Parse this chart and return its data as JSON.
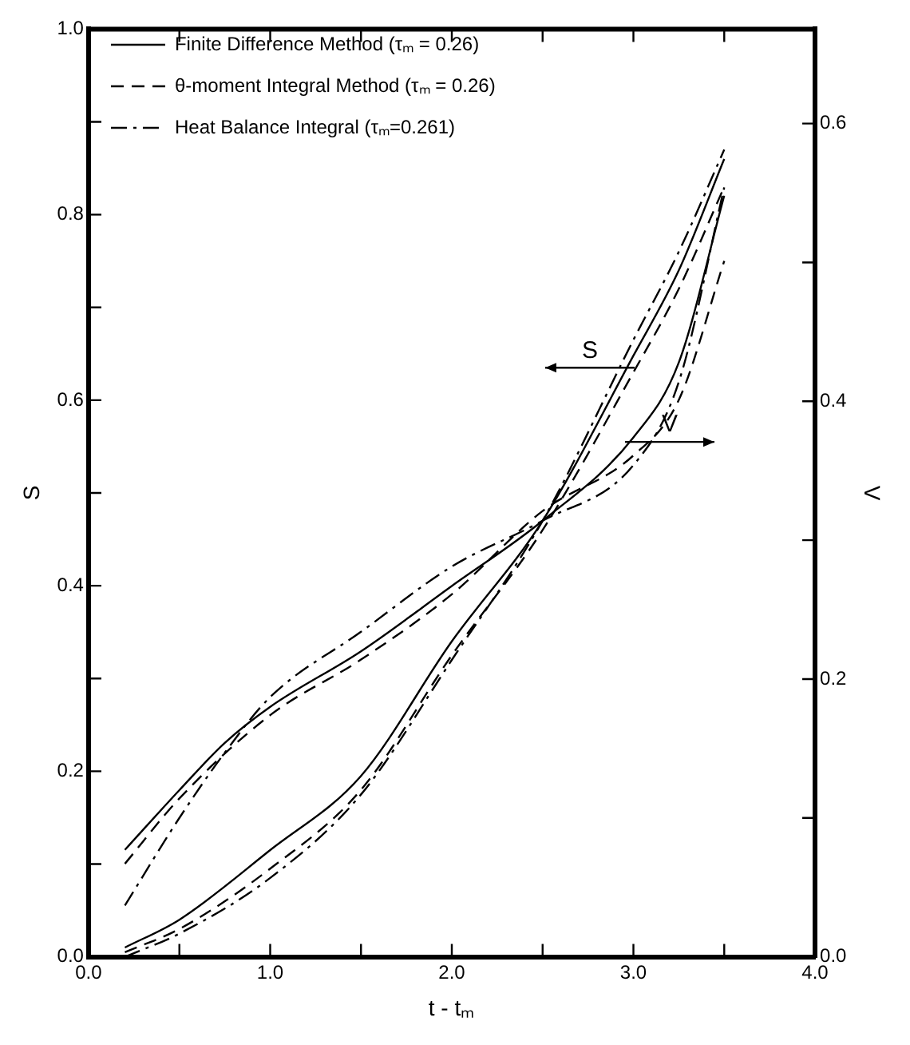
{
  "chart_data": {
    "type": "line",
    "xlabel": "t - tₘ",
    "ylabel": "S",
    "y2label": "V",
    "legend": "top left",
    "grid": false,
    "marker": "none",
    "xlim": [
      0,
      4
    ],
    "xticks": [
      {
        "value": 0,
        "label": "0.0"
      },
      {
        "value": 0.5,
        "label": null
      },
      {
        "value": 1,
        "label": "1.0"
      },
      {
        "value": 1.5,
        "label": null
      },
      {
        "value": 2,
        "label": "2.0"
      },
      {
        "value": 2.5,
        "label": null
      },
      {
        "value": 3,
        "label": "3.0"
      },
      {
        "value": 3.5,
        "label": null
      },
      {
        "value": 4,
        "label": "4.0"
      }
    ],
    "ylim": [
      0,
      1
    ],
    "yticks": [
      {
        "value": 0,
        "label": "0.0"
      },
      {
        "value": 0.1,
        "label": null
      },
      {
        "value": 0.2,
        "label": "0.2"
      },
      {
        "value": 0.3,
        "label": null
      },
      {
        "value": 0.4,
        "label": "0.4"
      },
      {
        "value": 0.5,
        "label": null
      },
      {
        "value": 0.6,
        "label": "0.6"
      },
      {
        "value": 0.7,
        "label": null
      },
      {
        "value": 0.8,
        "label": "0.8"
      },
      {
        "value": 0.9,
        "label": null
      },
      {
        "value": 1,
        "label": "1.0"
      }
    ],
    "y2lim": [
      0,
      0.668
    ],
    "y2ticks": [
      {
        "value": 0,
        "label": "0.0"
      },
      {
        "value": 0.1,
        "label": null
      },
      {
        "value": 0.2,
        "label": "0.2"
      },
      {
        "value": 0.3,
        "label": null
      },
      {
        "value": 0.4,
        "label": "0.4"
      },
      {
        "value": 0.5,
        "label": null
      },
      {
        "value": 0.6,
        "label": "0.6"
      }
    ],
    "annotations": [
      "S",
      "V"
    ],
    "series": [
      {
        "name": "Finite Difference Method (τₘ = 0.26)",
        "color": "#000000",
        "line_style": "solid",
        "x": [
          0.2,
          0.5,
          1.0,
          1.5,
          2.0,
          2.5,
          3.0,
          3.25,
          3.5
        ],
        "values": [
          0.01,
          0.04,
          0.115,
          0.195,
          0.34,
          0.47,
          0.648,
          0.74,
          0.86
        ]
      },
      {
        "name": "θ-moment Integral Method (τₘ = 0.26)",
        "color": "#000000",
        "line_style": "dashed",
        "x": [
          0.2,
          0.5,
          1.0,
          1.5,
          2.0,
          2.5,
          3.0,
          3.25,
          3.5
        ],
        "values": [
          0.005,
          0.03,
          0.095,
          0.18,
          0.325,
          0.46,
          0.63,
          0.72,
          0.83
        ]
      },
      {
        "name": "Heat Balance Integral (τₘ=0.261)",
        "color": "#000000",
        "line_style": "dashdot",
        "x": [
          0.2,
          0.5,
          1.0,
          1.5,
          2.0,
          2.5,
          3.0,
          3.25,
          3.5
        ],
        "values": [
          0.0,
          0.025,
          0.085,
          0.175,
          0.32,
          0.47,
          0.665,
          0.76,
          0.87
        ]
      },
      {
        "color": "#000000",
        "line_style": "solid",
        "axis": "y2",
        "x": [
          0.2,
          0.5,
          0.75,
          1.0,
          1.5,
          2.0,
          2.5,
          3.0,
          3.25,
          3.5
        ],
        "values": [
          0.077,
          0.12,
          0.154,
          0.18,
          0.22,
          0.267,
          0.314,
          0.374,
          0.428,
          0.548
        ]
      },
      {
        "color": "#000000",
        "line_style": "dashed",
        "axis": "y2",
        "x": [
          0.2,
          0.5,
          1.0,
          1.5,
          2.0,
          2.5,
          3.0,
          3.25,
          3.5
        ],
        "values": [
          0.067,
          0.114,
          0.174,
          0.214,
          0.261,
          0.321,
          0.361,
          0.401,
          0.501
        ]
      },
      {
        "color": "#000000",
        "line_style": "dashdot",
        "axis": "y2",
        "x": [
          0.2,
          0.5,
          0.75,
          1.0,
          1.5,
          2.0,
          2.5,
          3.0,
          3.25,
          3.5
        ],
        "values": [
          0.037,
          0.1,
          0.147,
          0.187,
          0.234,
          0.281,
          0.314,
          0.354,
          0.414,
          0.554
        ]
      }
    ]
  }
}
